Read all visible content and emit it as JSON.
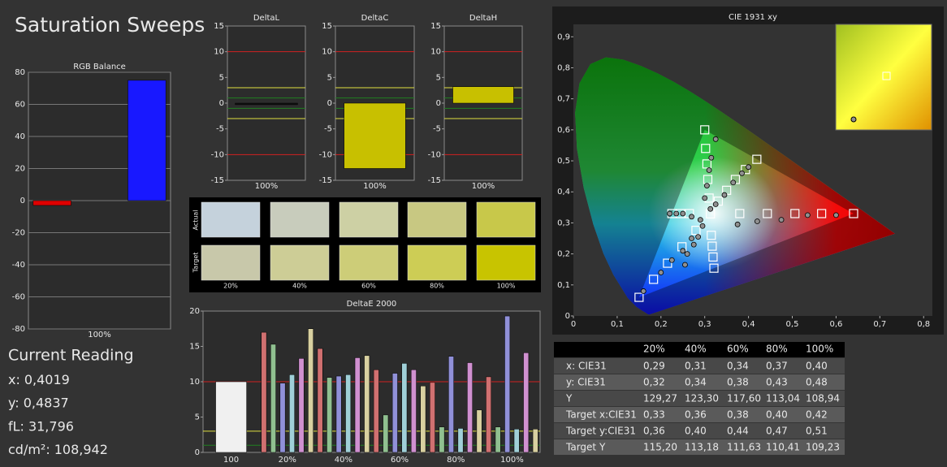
{
  "title": "Saturation Sweeps",
  "chart_data": [
    {
      "type": "bar",
      "title": "RGB Balance",
      "categories": [
        "100%"
      ],
      "series": [
        {
          "color": "#e00000",
          "values": [
            -3
          ]
        },
        {
          "color": "#00c000",
          "values": [
            0
          ]
        },
        {
          "color": "#1818ff",
          "values": [
            75
          ]
        }
      ],
      "ylim": [
        -80,
        80
      ],
      "yticks": [
        -80,
        -60,
        -40,
        -20,
        0,
        20,
        40,
        60,
        80
      ],
      "grid": true
    },
    {
      "type": "bar",
      "title": "DeltaL",
      "categories": [
        "100%"
      ],
      "series": [
        {
          "color": "#111111",
          "values": [
            -0.3
          ]
        }
      ],
      "ylim": [
        -15,
        15
      ],
      "yticks": [
        -15,
        -10,
        -5,
        0,
        5,
        10,
        15
      ],
      "grid": false,
      "reference_lines": [
        {
          "value": 10,
          "color": "#d02020"
        },
        {
          "value": -10,
          "color": "#d02020"
        },
        {
          "value": 3,
          "color": "#e0e040"
        },
        {
          "value": -3,
          "color": "#e0e040"
        },
        {
          "value": 1,
          "color": "#208020"
        },
        {
          "value": -1,
          "color": "#208020"
        }
      ]
    },
    {
      "type": "bar",
      "title": "DeltaC",
      "categories": [
        "100%"
      ],
      "series": [
        {
          "color": "#c8c000",
          "values": [
            -12.7
          ]
        }
      ],
      "ylim": [
        -15,
        15
      ],
      "yticks": [
        -15,
        -10,
        -5,
        0,
        5,
        10,
        15
      ],
      "grid": false,
      "reference_lines": [
        {
          "value": 10,
          "color": "#d02020"
        },
        {
          "value": -10,
          "color": "#d02020"
        },
        {
          "value": 3,
          "color": "#e0e040"
        },
        {
          "value": -3,
          "color": "#e0e040"
        },
        {
          "value": 1,
          "color": "#208020"
        },
        {
          "value": -1,
          "color": "#208020"
        }
      ]
    },
    {
      "type": "bar",
      "title": "DeltaH",
      "categories": [
        "100%"
      ],
      "series": [
        {
          "color": "#c8c000",
          "values": [
            3.2
          ]
        }
      ],
      "ylim": [
        -15,
        15
      ],
      "yticks": [
        -15,
        -10,
        -5,
        0,
        5,
        10,
        15
      ],
      "grid": false,
      "reference_lines": [
        {
          "value": 10,
          "color": "#d02020"
        },
        {
          "value": -10,
          "color": "#d02020"
        },
        {
          "value": 3,
          "color": "#e0e040"
        },
        {
          "value": -3,
          "color": "#e0e040"
        },
        {
          "value": 1,
          "color": "#208020"
        },
        {
          "value": -1,
          "color": "#208020"
        }
      ]
    },
    {
      "type": "bar",
      "title": "DeltaE 2000",
      "categories": [
        "100",
        "20%",
        "40%",
        "60%",
        "80%",
        "100%"
      ],
      "series": [
        {
          "color": "#f0f0f0",
          "values": [
            10,
            null,
            null,
            null,
            null,
            null
          ]
        },
        {
          "color": "#d07070",
          "values": [
            null,
            17,
            14.7,
            11.7,
            9.9,
            10.7
          ]
        },
        {
          "color": "#90c090",
          "values": [
            null,
            15.3,
            10.6,
            5.3,
            3.6,
            3.6
          ]
        },
        {
          "color": "#9090d8",
          "values": [
            null,
            9.8,
            10.8,
            11.2,
            13.6,
            19.3
          ]
        },
        {
          "color": "#a0d0d8",
          "values": [
            null,
            11,
            11,
            12.6,
            3.4,
            3.3
          ]
        },
        {
          "color": "#d090d0",
          "values": [
            null,
            13.3,
            13.4,
            11.7,
            12.7,
            14.1
          ]
        },
        {
          "color": "#d8d0a0",
          "values": [
            null,
            17.5,
            13.7,
            9.4,
            6,
            3.3
          ]
        }
      ],
      "ylim": [
        0,
        20
      ],
      "yticks": [
        0,
        5,
        10,
        15,
        20
      ],
      "grid": false,
      "reference_lines": [
        {
          "value": 10,
          "color": "#d02020"
        },
        {
          "value": 3,
          "color": "#e0e040"
        },
        {
          "value": 1,
          "color": "#208020"
        }
      ]
    },
    {
      "type": "scatter",
      "title": "CIE 1931 xy",
      "xlim": [
        0,
        0.82
      ],
      "ylim": [
        0,
        0.94
      ],
      "xticks": [
        0,
        {
          "value": 0.1,
          "label": "0,1"
        },
        {
          "value": 0.2,
          "label": "0,2"
        },
        {
          "value": 0.3,
          "label": "0,3"
        },
        {
          "value": 0.4,
          "label": "0,4"
        },
        {
          "value": 0.5,
          "label": "0,5"
        },
        {
          "value": 0.6,
          "label": "0,6"
        },
        {
          "value": 0.7,
          "label": "0,7"
        },
        {
          "value": 0.8,
          "label": "0,8"
        }
      ],
      "yticks": [
        0,
        {
          "value": 0.1,
          "label": "0,1"
        },
        {
          "value": 0.2,
          "label": "0,2"
        },
        {
          "value": 0.3,
          "label": "0,3"
        },
        {
          "value": 0.4,
          "label": "0,4"
        },
        {
          "value": 0.5,
          "label": "0,5"
        },
        {
          "value": 0.6,
          "label": "0,6"
        },
        {
          "value": 0.7,
          "label": "0,7"
        },
        {
          "value": 0.8,
          "label": "0,8"
        },
        {
          "value": 0.9,
          "label": "0,9"
        }
      ],
      "series": [
        {
          "marker": "square",
          "color": "#ffffff",
          "x": [
            0.64,
            0.567,
            0.506,
            0.443,
            0.38,
            0.3,
            0.302,
            0.305,
            0.307,
            0.31,
            0.15,
            0.183,
            0.215,
            0.248,
            0.28,
            0.225,
            0.245,
            0.265,
            0.321,
            0.319,
            0.317,
            0.315,
            0.419,
            0.393,
            0.37,
            0.35,
            0.331,
            0.313
          ],
          "y": [
            0.33,
            0.33,
            0.33,
            0.33,
            0.33,
            0.6,
            0.54,
            0.49,
            0.44,
            0.38,
            0.06,
            0.118,
            0.17,
            0.223,
            0.276,
            0.33,
            0.33,
            0.33,
            0.154,
            0.19,
            0.225,
            0.26,
            0.505,
            0.472,
            0.44,
            0.405,
            0.37,
            0.329
          ]
        },
        {
          "marker": "circle",
          "color": "#909090",
          "x": [
            0.6,
            0.535,
            0.475,
            0.42,
            0.375,
            0.325,
            0.315,
            0.31,
            0.305,
            0.3,
            0.16,
            0.2,
            0.225,
            0.25,
            0.27,
            0.22,
            0.235,
            0.25,
            0.27,
            0.29,
            0.255,
            0.26,
            0.275,
            0.285,
            0.295,
            0.4,
            0.385,
            0.365,
            0.345,
            0.325,
            0.313
          ],
          "y": [
            0.325,
            0.325,
            0.31,
            0.305,
            0.295,
            0.57,
            0.51,
            0.47,
            0.42,
            0.38,
            0.08,
            0.14,
            0.18,
            0.21,
            0.25,
            0.33,
            0.33,
            0.33,
            0.32,
            0.31,
            0.165,
            0.2,
            0.23,
            0.255,
            0.29,
            0.48,
            0.46,
            0.43,
            0.39,
            0.36,
            0.345
          ]
        }
      ]
    }
  ],
  "swatches": {
    "row_labels": [
      "Actual",
      "Target"
    ],
    "categories": [
      "20%",
      "40%",
      "60%",
      "80%",
      "100%"
    ],
    "actual_colors": [
      "#c5d2dc",
      "#c8ccbc",
      "#cdd0a4",
      "#c8c882",
      "#c8c84a"
    ],
    "target_colors": [
      "#c8c8aa",
      "#cdcd96",
      "#cdcd78",
      "#cdcd55",
      "#c8c400"
    ]
  },
  "current_reading": {
    "title": "Current Reading",
    "lines": [
      {
        "label": "x:",
        "value": "0,4019"
      },
      {
        "label": "y:",
        "value": "0,4837"
      },
      {
        "label": "fL:",
        "value": "31,796"
      },
      {
        "label": "cd/m²:",
        "value": "108,942"
      }
    ]
  },
  "table": {
    "columns": [
      "20%",
      "40%",
      "60%",
      "80%",
      "100%"
    ],
    "rows": [
      {
        "label": "x: CIE31",
        "cells": [
          "0,29",
          "0,31",
          "0,34",
          "0,37",
          "0,40"
        ]
      },
      {
        "label": "y: CIE31",
        "cells": [
          "0,32",
          "0,34",
          "0,38",
          "0,43",
          "0,48"
        ]
      },
      {
        "label": "Y",
        "cells": [
          "129,27",
          "123,30",
          "117,60",
          "113,04",
          "108,94"
        ]
      },
      {
        "label": "Target x:CIE31",
        "cells": [
          "0,33",
          "0,36",
          "0,38",
          "0,40",
          "0,42"
        ]
      },
      {
        "label": "Target y:CIE31",
        "cells": [
          "0,36",
          "0,40",
          "0,44",
          "0,47",
          "0,51"
        ]
      },
      {
        "label": "Target Y",
        "cells": [
          "115,20",
          "113,18",
          "111,63",
          "110,41",
          "109,23"
        ]
      }
    ]
  }
}
